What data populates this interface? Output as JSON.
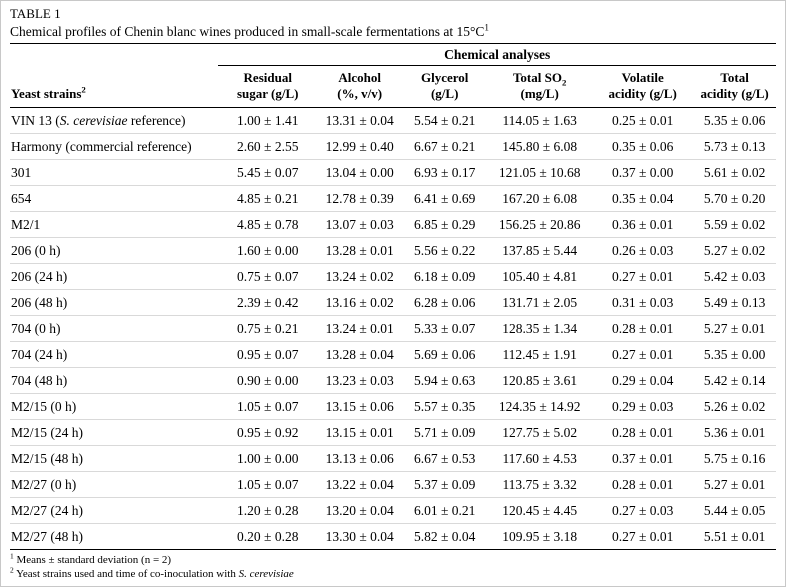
{
  "page": {
    "label": "TABLE 1",
    "caption": {
      "text": "Chemical profiles of Chenin blanc wines produced in small-scale fermentations at 15°C",
      "sup": "1"
    }
  },
  "table": {
    "group_header": "Chemical analyses",
    "strain_header": {
      "text": "Yeast strains",
      "sup": "2"
    },
    "columns": [
      {
        "l1": "Residual",
        "l2": "sugar (g/L)"
      },
      {
        "l1": "Alcohol",
        "l2": "(%, v/v)"
      },
      {
        "l1": "Glycerol",
        "l2": "(g/L)"
      },
      {
        "l1": "Total SO",
        "l1_sub": "2",
        "l2": "(mg/L)"
      },
      {
        "l1": "Volatile",
        "l2": "acidity (g/L)"
      },
      {
        "l1": "Total",
        "l2": "acidity (g/L)"
      }
    ],
    "rows": [
      {
        "strain": [
          "VIN 13 (",
          {
            "i": "S. cerevisiae"
          },
          " reference)"
        ],
        "values": [
          "1.00 ± 1.41",
          "13.31 ± 0.04",
          "5.54 ± 0.21",
          "114.05 ± 1.63",
          "0.25 ± 0.01",
          "5.35 ± 0.06"
        ]
      },
      {
        "strain": [
          "Harmony (commercial reference)"
        ],
        "values": [
          "2.60 ± 2.55",
          "12.99 ± 0.40",
          "6.67 ± 0.21",
          "145.80 ± 6.08",
          "0.35 ± 0.06",
          "5.73 ± 0.13"
        ]
      },
      {
        "strain": [
          "301"
        ],
        "values": [
          "5.45 ± 0.07",
          "13.04 ± 0.00",
          "6.93 ± 0.17",
          "121.05 ± 10.68",
          "0.37 ± 0.00",
          "5.61 ± 0.02"
        ]
      },
      {
        "strain": [
          "654"
        ],
        "values": [
          "4.85 ± 0.21",
          "12.78 ± 0.39",
          "6.41 ± 0.69",
          "167.20 ± 6.08",
          "0.35 ± 0.04",
          "5.70 ± 0.20"
        ]
      },
      {
        "strain": [
          "M2/1"
        ],
        "values": [
          "4.85 ± 0.78",
          "13.07 ± 0.03",
          "6.85 ± 0.29",
          "156.25 ± 20.86",
          "0.36 ± 0.01",
          "5.59 ± 0.02"
        ]
      },
      {
        "strain": [
          "206 (0 h)"
        ],
        "values": [
          "1.60 ± 0.00",
          "13.28 ± 0.01",
          "5.56 ± 0.22",
          "137.85 ± 5.44",
          "0.26 ± 0.03",
          "5.27 ± 0.02"
        ]
      },
      {
        "strain": [
          "206 (24 h)"
        ],
        "values": [
          "0.75 ± 0.07",
          "13.24 ± 0.02",
          "6.18 ± 0.09",
          "105.40 ± 4.81",
          "0.27 ± 0.01",
          "5.42 ± 0.03"
        ]
      },
      {
        "strain": [
          "206 (48 h)"
        ],
        "values": [
          "2.39 ± 0.42",
          "13.16 ± 0.02",
          "6.28 ± 0.06",
          "131.71 ± 2.05",
          "0.31 ± 0.03",
          "5.49 ± 0.13"
        ]
      },
      {
        "strain": [
          "704 (0 h)"
        ],
        "values": [
          "0.75 ± 0.21",
          "13.24 ± 0.01",
          "5.33 ± 0.07",
          "128.35 ± 1.34",
          "0.28 ± 0.01",
          "5.27 ± 0.01"
        ]
      },
      {
        "strain": [
          "704 (24 h)"
        ],
        "values": [
          "0.95 ± 0.07",
          "13.28 ± 0.04",
          "5.69 ± 0.06",
          "112.45 ± 1.91",
          "0.27 ± 0.01",
          "5.35 ± 0.00"
        ]
      },
      {
        "strain": [
          "704 (48 h)"
        ],
        "values": [
          "0.90 ± 0.00",
          "13.23 ± 0.03",
          "5.94 ± 0.63",
          "120.85 ± 3.61",
          "0.29 ± 0.04",
          "5.42 ± 0.14"
        ]
      },
      {
        "strain": [
          "M2/15 (0 h)"
        ],
        "values": [
          "1.05 ± 0.07",
          "13.15 ± 0.06",
          "5.57 ± 0.35",
          "124.35 ± 14.92",
          "0.29 ± 0.03",
          "5.26 ± 0.02"
        ]
      },
      {
        "strain": [
          "M2/15 (24 h)"
        ],
        "values": [
          "0.95 ± 0.92",
          "13.15 ± 0.01",
          "5.71 ± 0.09",
          "127.75 ± 5.02",
          "0.28 ± 0.01",
          "5.36 ± 0.01"
        ]
      },
      {
        "strain": [
          "M2/15 (48 h)"
        ],
        "values": [
          "1.00 ± 0.00",
          "13.13 ± 0.06",
          "6.67 ± 0.53",
          "117.60 ± 4.53",
          "0.37 ± 0.01",
          "5.75 ± 0.16"
        ]
      },
      {
        "strain": [
          "M2/27 (0 h)"
        ],
        "values": [
          "1.05 ± 0.07",
          "13.22 ± 0.04",
          "5.37 ± 0.09",
          "113.75 ± 3.32",
          "0.28 ± 0.01",
          "5.27 ± 0.01"
        ]
      },
      {
        "strain": [
          "M2/27 (24 h)"
        ],
        "values": [
          "1.20 ± 0.28",
          "13.20 ± 0.04",
          "6.01 ± 0.21",
          "120.45 ± 4.45",
          "0.27 ± 0.03",
          "5.44 ± 0.05"
        ]
      },
      {
        "strain": [
          "M2/27 (48 h)"
        ],
        "values": [
          "0.20 ± 0.28",
          "13.30 ± 0.04",
          "5.82 ± 0.04",
          "109.95 ± 3.18",
          "0.27 ± 0.01",
          "5.51 ± 0.01"
        ]
      }
    ]
  },
  "footnotes": [
    {
      "sup": "1",
      "parts": [
        "Means ± standard deviation (n = 2)"
      ]
    },
    {
      "sup": "2",
      "parts": [
        "Yeast strains used and time of co-inoculation with ",
        {
          "i": "S. cerevisiae"
        }
      ]
    }
  ]
}
